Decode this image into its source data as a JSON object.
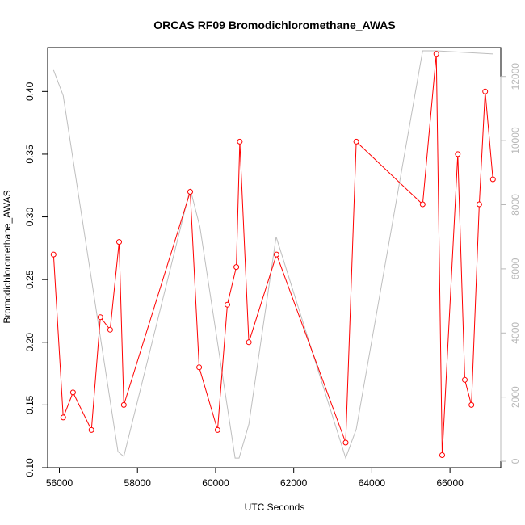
{
  "chart_data": {
    "type": "line",
    "title": "ORCAS RF09 Bromodichloromethane_AWAS",
    "xlabel": "UTC Seconds",
    "ylabel": "Bromodichloromethane_AWAS",
    "xlim": [
      55700,
      67300
    ],
    "ylim": [
      0.1,
      0.435
    ],
    "y2lim": [
      -200,
      12900
    ],
    "grid": false,
    "x_ticks": [
      "56000",
      "58000",
      "60000",
      "62000",
      "64000",
      "66000"
    ],
    "y_ticks": [
      "0.10",
      "0.15",
      "0.20",
      "0.25",
      "0.30",
      "0.35",
      "0.40"
    ],
    "y2_ticks": [
      "0",
      "2000",
      "4000",
      "6000",
      "8000",
      "10000",
      "12000"
    ],
    "series": [
      {
        "color": "#ff0000",
        "marker": "open-circle",
        "axis": "left",
        "x": [
          55850,
          56100,
          56350,
          56820,
          57050,
          57300,
          57530,
          57650,
          59350,
          59580,
          60050,
          60300,
          60530,
          60620,
          60850,
          61560,
          63330,
          63600,
          65300,
          65650,
          65800,
          66200,
          66380,
          66550,
          66750,
          66900,
          67100
        ],
        "y": [
          0.27,
          0.14,
          0.16,
          0.13,
          0.22,
          0.21,
          0.28,
          0.15,
          0.32,
          0.18,
          0.13,
          0.23,
          0.26,
          0.36,
          0.2,
          0.27,
          0.12,
          0.36,
          0.31,
          0.43,
          0.11,
          0.35,
          0.17,
          0.15,
          0.31,
          0.4,
          0.33
        ]
      },
      {
        "color": "#bebebe",
        "marker": "none",
        "axis": "right",
        "x": [
          55850,
          56100,
          57500,
          57650,
          59350,
          59600,
          60500,
          60600,
          60850,
          61550,
          63330,
          63600,
          65300,
          65650,
          67100
        ],
        "y": [
          12200,
          11400,
          300,
          150,
          8500,
          7300,
          100,
          100,
          1150,
          7000,
          100,
          1000,
          12800,
          12800,
          12700
        ]
      }
    ]
  }
}
